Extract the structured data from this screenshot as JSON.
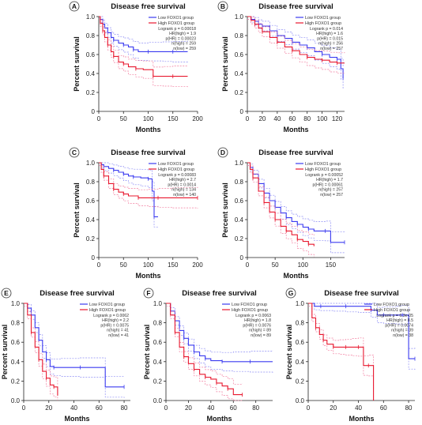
{
  "figure": {
    "colors": {
      "low": "#3b3bf0",
      "low_ci": "#8f8ff5",
      "high": "#e8182f",
      "high_ci": "#f27fa0",
      "axis": "#222222",
      "badge_bg": "#ffffff",
      "badge_border": "#333333"
    }
  },
  "chart_data": [
    {
      "panel": "A",
      "type": "line",
      "title": "Disease free survival",
      "xlabel": "Months",
      "ylabel": "Percent survival",
      "xlim": [
        0,
        200
      ],
      "ylim": [
        0,
        1.0
      ],
      "xticks": [
        "0",
        "50",
        "100",
        "150",
        "200"
      ],
      "yticks": [
        "0",
        "0.2",
        "0.4",
        "0.6",
        "0.8",
        "1.0"
      ],
      "legend": {
        "series": [
          "Low FOXO1 group",
          "High FOXO1 group"
        ],
        "stats": [
          "Logrank p = 0.00018",
          "HR(high) = 1.9",
          "p(HR) = 0.00023",
          "n(high) = 259",
          "n(low) = 259"
        ]
      },
      "series": [
        {
          "name": "Low FOXO1 group",
          "color": "low",
          "x": [
            0,
            3,
            8,
            12,
            18,
            25,
            30,
            40,
            50,
            60,
            70,
            80,
            100,
            130,
            150,
            180
          ],
          "y": [
            1.0,
            0.97,
            0.92,
            0.88,
            0.83,
            0.78,
            0.75,
            0.72,
            0.7,
            0.68,
            0.65,
            0.63,
            0.63,
            0.63,
            0.63,
            0.63
          ]
        },
        {
          "name": "High FOXO1 group",
          "color": "high",
          "x": [
            0,
            3,
            8,
            12,
            18,
            25,
            30,
            40,
            50,
            60,
            75,
            90,
            110,
            130,
            150,
            180
          ],
          "y": [
            1.0,
            0.93,
            0.85,
            0.78,
            0.7,
            0.63,
            0.58,
            0.52,
            0.5,
            0.47,
            0.45,
            0.44,
            0.37,
            0.37,
            0.37,
            0.37
          ]
        }
      ]
    },
    {
      "panel": "B",
      "type": "line",
      "title": "Disease free survival",
      "xlabel": "Months",
      "ylabel": "Percent survival",
      "xlim": [
        0,
        130
      ],
      "ylim": [
        0,
        1.0
      ],
      "xticks": [
        "0",
        "20",
        "40",
        "60",
        "80",
        "100",
        "120"
      ],
      "yticks": [
        "0",
        "0.2",
        "0.4",
        "0.6",
        "0.8",
        "1.0"
      ],
      "legend": {
        "series": [
          "Low FOXO1 group",
          "High FOXO1 group"
        ],
        "stats": [
          "Logrank p = 0.014",
          "HR(high) = 1.6",
          "p(HR) = 0.015",
          "n(high) = 256",
          "n(low) = 257"
        ]
      },
      "series": [
        {
          "name": "Low FOXO1 group",
          "color": "low",
          "x": [
            0,
            5,
            10,
            15,
            20,
            30,
            40,
            50,
            60,
            70,
            80,
            90,
            100,
            110,
            120,
            125,
            128
          ],
          "y": [
            1.0,
            0.97,
            0.95,
            0.92,
            0.9,
            0.85,
            0.8,
            0.77,
            0.73,
            0.7,
            0.67,
            0.63,
            0.6,
            0.57,
            0.55,
            0.45,
            0.35
          ]
        },
        {
          "name": "High FOXO1 group",
          "color": "high",
          "x": [
            0,
            5,
            10,
            15,
            20,
            30,
            40,
            50,
            60,
            70,
            80,
            90,
            100,
            110,
            120,
            130
          ],
          "y": [
            1.0,
            0.96,
            0.92,
            0.88,
            0.84,
            0.78,
            0.73,
            0.68,
            0.64,
            0.6,
            0.57,
            0.55,
            0.54,
            0.52,
            0.51,
            0.51
          ]
        }
      ]
    },
    {
      "panel": "C",
      "type": "line",
      "title": "Disease free survival",
      "xlabel": "Months",
      "ylabel": "Percent survival",
      "xlim": [
        0,
        200
      ],
      "ylim": [
        0,
        1.0
      ],
      "xticks": [
        "0",
        "50",
        "100",
        "150",
        "200"
      ],
      "yticks": [
        "0",
        "0.2",
        "0.4",
        "0.6",
        "0.8",
        "1.0"
      ],
      "legend": {
        "series": [
          "Low FOXO1 group",
          "High FOXO1 group"
        ],
        "stats": [
          "Logrank p = 0.00083",
          "HR(high) = 2.7",
          "p(HR) = 0.0014",
          "n(high) = 134",
          "n(low) = 140"
        ]
      },
      "series": [
        {
          "name": "Low FOXO1 group",
          "color": "low",
          "x": [
            0,
            5,
            10,
            20,
            30,
            40,
            50,
            60,
            70,
            85,
            100,
            108,
            112,
            120
          ],
          "y": [
            1.0,
            0.98,
            0.96,
            0.94,
            0.92,
            0.9,
            0.88,
            0.86,
            0.85,
            0.84,
            0.83,
            0.7,
            0.43,
            0.43
          ]
        },
        {
          "name": "High FOXO1 group",
          "color": "high",
          "x": [
            0,
            5,
            10,
            20,
            30,
            40,
            50,
            60,
            80,
            100,
            120,
            150,
            200
          ],
          "y": [
            1.0,
            0.93,
            0.86,
            0.78,
            0.72,
            0.69,
            0.67,
            0.65,
            0.63,
            0.63,
            0.63,
            0.63,
            0.63
          ]
        }
      ]
    },
    {
      "panel": "D",
      "type": "line",
      "title": "Disease free survival",
      "xlabel": "Months",
      "ylabel": "Percent survival",
      "xlim": [
        0,
        175
      ],
      "ylim": [
        0,
        1.0
      ],
      "xticks": [
        "0",
        "50",
        "100",
        "150"
      ],
      "yticks": [
        "0",
        "0.2",
        "0.4",
        "0.6",
        "0.8",
        "1.0"
      ],
      "legend": {
        "series": [
          "Low FOXO1 group",
          "High FOXO1 group"
        ],
        "stats": [
          "Logrank p = 0.00052",
          "HR(high) = 1.7",
          "p(HR) = 0.00061",
          "n(high) = 257",
          "n(low) = 257"
        ]
      },
      "series": [
        {
          "name": "Low FOXO1 group",
          "color": "low",
          "x": [
            0,
            5,
            10,
            20,
            30,
            40,
            50,
            60,
            70,
            80,
            90,
            100,
            110,
            120,
            140,
            150,
            175
          ],
          "y": [
            1.0,
            0.95,
            0.88,
            0.78,
            0.68,
            0.6,
            0.53,
            0.47,
            0.42,
            0.38,
            0.35,
            0.32,
            0.3,
            0.28,
            0.28,
            0.16,
            0.16
          ]
        },
        {
          "name": "High FOXO1 group",
          "color": "high",
          "x": [
            0,
            5,
            10,
            20,
            30,
            40,
            50,
            60,
            70,
            80,
            90,
            100,
            110,
            120
          ],
          "y": [
            1.0,
            0.93,
            0.84,
            0.7,
            0.58,
            0.48,
            0.4,
            0.33,
            0.28,
            0.24,
            0.19,
            0.17,
            0.14,
            0.12
          ]
        }
      ]
    },
    {
      "panel": "E",
      "type": "line",
      "title": "Disease free survival",
      "xlabel": "Months",
      "ylabel": "Percent survival",
      "xlim": [
        0,
        85
      ],
      "ylim": [
        0,
        1.0
      ],
      "xticks": [
        "0",
        "20",
        "40",
        "60",
        "80"
      ],
      "yticks": [
        "0.0",
        "0.2",
        "0.4",
        "0.6",
        "0.8",
        "1.0"
      ],
      "legend": {
        "series": [
          "Low FOXO1 group",
          "High FOXO1 group"
        ],
        "stats": [
          "Logrank p = 0.0062",
          "HR(high) = 2.2",
          "p(HR) = 0.0075",
          "n(high) = 41",
          "n(low) = 41"
        ]
      },
      "series": [
        {
          "name": "Low FOXO1 group",
          "color": "low",
          "x": [
            0,
            3,
            6,
            9,
            12,
            15,
            18,
            21,
            24,
            30,
            45,
            65,
            80
          ],
          "y": [
            1.0,
            0.95,
            0.88,
            0.75,
            0.62,
            0.5,
            0.42,
            0.35,
            0.34,
            0.34,
            0.34,
            0.14,
            0.14
          ]
        },
        {
          "name": "High FOXO1 group",
          "color": "high",
          "x": [
            0,
            3,
            6,
            9,
            12,
            15,
            18,
            21,
            24,
            27
          ],
          "y": [
            1.0,
            0.88,
            0.7,
            0.55,
            0.42,
            0.3,
            0.23,
            0.16,
            0.14,
            0.05
          ]
        }
      ]
    },
    {
      "panel": "F",
      "type": "line",
      "title": "Disease free survival",
      "xlabel": "Months",
      "ylabel": "Percent survival",
      "xlim": [
        0,
        95
      ],
      "ylim": [
        0,
        1.0
      ],
      "xticks": [
        "0",
        "20",
        "40",
        "60",
        "80"
      ],
      "yticks": [
        "0.0",
        "0.2",
        "0.4",
        "0.6",
        "0.8",
        "1.0"
      ],
      "legend": {
        "series": [
          "Low FOXO1 group",
          "High FOXO1 group"
        ],
        "stats": [
          "Logrank p = 0.0063",
          "HR(high) = 1.8",
          "p(HR) = 0.0076",
          "n(high) = 89",
          "n(low) = 89"
        ]
      },
      "series": [
        {
          "name": "Low FOXO1 group",
          "color": "low",
          "x": [
            0,
            4,
            8,
            12,
            16,
            20,
            25,
            30,
            35,
            40,
            50,
            60,
            75,
            95
          ],
          "y": [
            1.0,
            0.92,
            0.82,
            0.72,
            0.64,
            0.57,
            0.5,
            0.46,
            0.43,
            0.41,
            0.4,
            0.4,
            0.4,
            0.4
          ]
        },
        {
          "name": "High FOXO1 group",
          "color": "high",
          "x": [
            0,
            4,
            8,
            12,
            16,
            20,
            25,
            30,
            35,
            40,
            45,
            50,
            55,
            60,
            68
          ],
          "y": [
            1.0,
            0.88,
            0.7,
            0.55,
            0.45,
            0.38,
            0.32,
            0.27,
            0.24,
            0.22,
            0.18,
            0.15,
            0.12,
            0.06,
            0.06
          ]
        }
      ]
    },
    {
      "panel": "G",
      "type": "line",
      "title": "Disease free survival",
      "xlabel": "Months",
      "ylabel": "Percent survival",
      "xlim": [
        0,
        85
      ],
      "ylim": [
        0,
        1.0
      ],
      "xticks": [
        "0",
        "20",
        "40",
        "60",
        "80"
      ],
      "yticks": [
        "0.0",
        "0.2",
        "0.4",
        "0.6",
        "0.8",
        "1.0"
      ],
      "legend": {
        "series": [
          "Low FOXO1 group",
          "High FOXO1 group"
        ],
        "stats": [
          "Logrank p = 6.3e-05",
          "HR(high) = 8.5",
          "p(HR) = 0.0074",
          "n(high) = 39",
          "n(low) = 38"
        ]
      },
      "series": [
        {
          "name": "Low FOXO1 group",
          "color": "low",
          "x": [
            0,
            5,
            10,
            20,
            30,
            40,
            50,
            55,
            60,
            70,
            75,
            80,
            85
          ],
          "y": [
            1.0,
            0.97,
            0.97,
            0.97,
            0.97,
            0.97,
            0.93,
            0.88,
            0.88,
            0.88,
            0.88,
            0.43,
            0.43
          ]
        },
        {
          "name": "High FOXO1 group",
          "color": "high",
          "x": [
            0,
            3,
            6,
            9,
            12,
            15,
            20,
            25,
            30,
            35,
            40,
            44,
            48,
            52
          ],
          "y": [
            1.0,
            0.85,
            0.75,
            0.68,
            0.62,
            0.58,
            0.55,
            0.55,
            0.55,
            0.55,
            0.55,
            0.36,
            0.36,
            0.0
          ]
        }
      ]
    }
  ]
}
